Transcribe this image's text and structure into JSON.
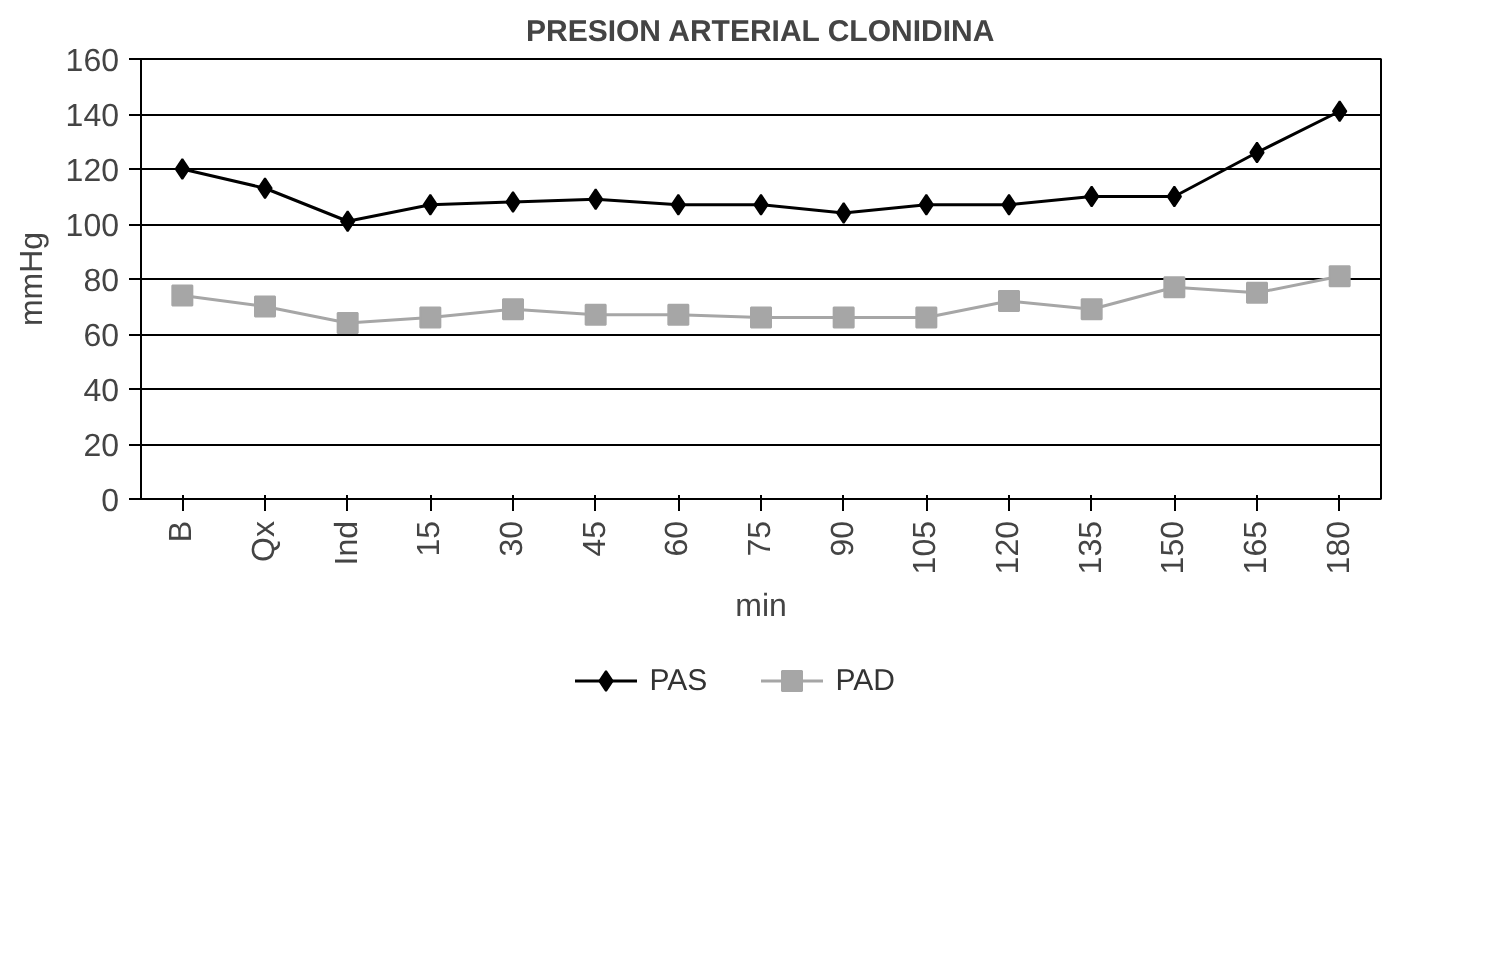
{
  "chart_data": {
    "type": "line",
    "title": "PRESION ARTERIAL CLONIDINA",
    "xlabel": "min",
    "ylabel": "mmHg",
    "categories": [
      "B",
      "Qx",
      "Ind",
      "15",
      "30",
      "45",
      "60",
      "75",
      "90",
      "105",
      "120",
      "135",
      "150",
      "165",
      "180"
    ],
    "series": [
      {
        "name": "PAS",
        "color": "#000000",
        "marker": "diamond",
        "values": [
          120,
          113,
          101,
          107,
          108,
          109,
          107,
          107,
          104,
          107,
          107,
          110,
          110,
          126,
          141
        ]
      },
      {
        "name": "PAD",
        "color": "#a6a6a6",
        "marker": "square",
        "values": [
          74,
          70,
          64,
          66,
          69,
          67,
          67,
          66,
          66,
          66,
          72,
          69,
          77,
          75,
          81
        ]
      }
    ],
    "ylim": [
      0,
      160
    ],
    "yticks": [
      0,
      20,
      40,
      60,
      80,
      100,
      120,
      140,
      160
    ],
    "grid": "y",
    "legend": "bottom",
    "line_style": "solid"
  }
}
